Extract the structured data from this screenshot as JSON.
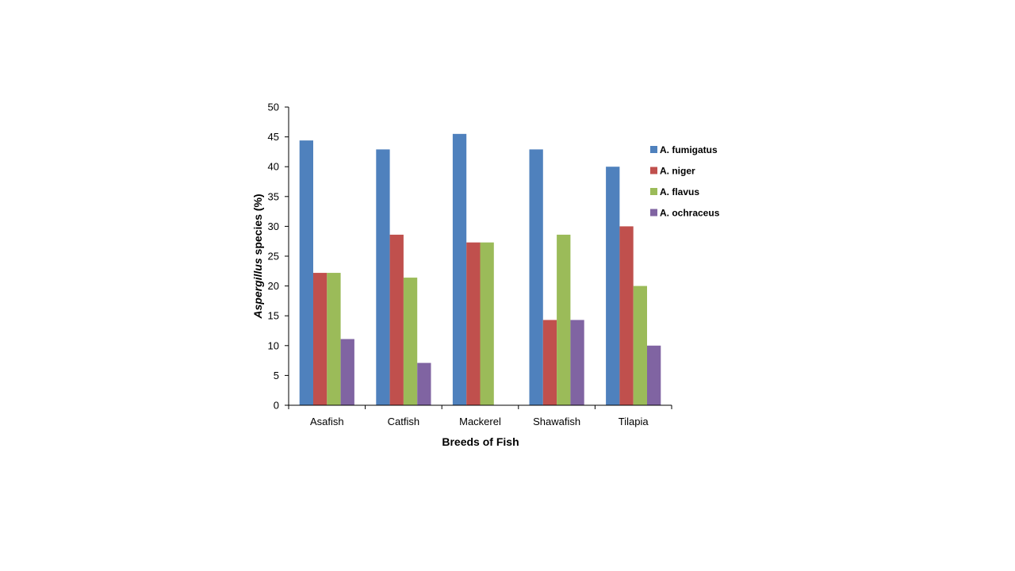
{
  "chart_data": {
    "type": "bar",
    "title": "",
    "xlabel": "Breeds of Fish",
    "ylabel": {
      "italic": "Aspergillus",
      "rest": " species (%)"
    },
    "categories": [
      "Asafish",
      "Catfish",
      "Mackerel",
      "Shawafish",
      "Tilapia"
    ],
    "ylim": [
      0,
      50
    ],
    "yticks": [
      "0",
      "5",
      "10",
      "15",
      "20",
      "25",
      "30",
      "35",
      "40",
      "45",
      "50"
    ],
    "grid": false,
    "legend_position": "right",
    "series": [
      {
        "name": "A. fumigatus",
        "color": "#4f81bd",
        "values": [
          44.4,
          42.9,
          45.5,
          42.9,
          40.0
        ]
      },
      {
        "name": "A. niger",
        "color": "#c0504d",
        "values": [
          22.2,
          28.6,
          27.3,
          14.3,
          30.0
        ]
      },
      {
        "name": "A. flavus",
        "color": "#9bbb59",
        "values": [
          22.2,
          21.4,
          27.3,
          28.6,
          20.0
        ]
      },
      {
        "name": "A. ochraceus",
        "color": "#8064a2",
        "values": [
          11.1,
          7.1,
          0,
          14.3,
          10.0
        ]
      }
    ]
  }
}
